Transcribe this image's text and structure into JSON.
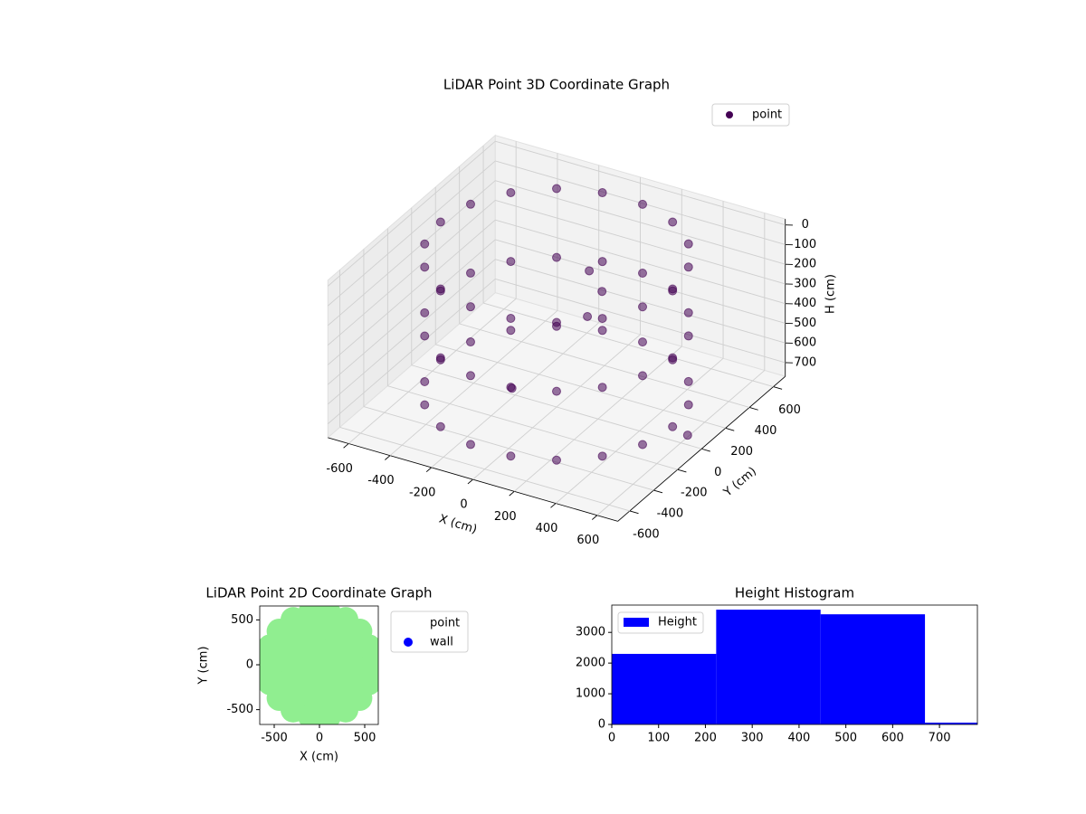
{
  "chart_data": [
    {
      "type": "scatter3d",
      "title": "LiDAR Point 3D Coordinate Graph",
      "xlabel": "X (cm)",
      "ylabel": "Y (cm)",
      "zlabel": "H (cm)",
      "xlim": [
        -700,
        700
      ],
      "ylim": [
        -700,
        700
      ],
      "zlim": [
        -30,
        770
      ],
      "z_inverted": true,
      "xticks": [
        -600,
        -400,
        -200,
        0,
        200,
        400,
        600
      ],
      "yticks": [
        -600,
        -400,
        -200,
        0,
        200,
        400,
        600
      ],
      "zticks": [
        0,
        100,
        200,
        300,
        400,
        500,
        600,
        700
      ],
      "grid": true,
      "legend": "upper right",
      "series": [
        {
          "name": "point",
          "color": "#440154",
          "x": [
            560,
            526,
            429,
            280,
            97,
            -97,
            -280,
            -429,
            -526,
            -560,
            -526,
            -429,
            -280,
            -97,
            97,
            280,
            429,
            526,
            560,
            526,
            429,
            280,
            97,
            -97,
            -280,
            -429,
            -526,
            -560,
            -526,
            -429,
            -280,
            -97,
            97,
            280,
            429,
            526,
            560,
            526,
            429,
            280,
            97,
            -97,
            -280,
            -429,
            -526,
            -560,
            -526,
            -429,
            -280,
            -97,
            97,
            280,
            429,
            526,
            100,
            150,
            120,
            -100,
            650
          ],
          "y": [
            0,
            192,
            360,
            485,
            551,
            551,
            485,
            360,
            192,
            0,
            -192,
            -360,
            -485,
            -551,
            -551,
            -485,
            -360,
            -192,
            0,
            192,
            360,
            485,
            551,
            551,
            485,
            360,
            192,
            0,
            -192,
            -360,
            -485,
            -551,
            -551,
            -485,
            -360,
            -192,
            0,
            192,
            360,
            485,
            551,
            551,
            485,
            360,
            192,
            0,
            -192,
            -360,
            -485,
            -551,
            -551,
            -485,
            -360,
            -192,
            100,
            120,
            50,
            -200,
            -30
          ],
          "h": [
            0,
            0,
            0,
            0,
            0,
            0,
            0,
            0,
            0,
            0,
            0,
            0,
            0,
            0,
            0,
            0,
            0,
            0,
            350,
            350,
            350,
            350,
            350,
            350,
            350,
            350,
            350,
            350,
            350,
            350,
            350,
            350,
            350,
            350,
            350,
            350,
            700,
            700,
            700,
            700,
            700,
            700,
            700,
            700,
            700,
            700,
            700,
            700,
            700,
            700,
            700,
            700,
            700,
            700,
            100,
            200,
            300,
            600,
            700
          ]
        }
      ]
    },
    {
      "type": "scatter",
      "title": "LiDAR Point 2D Coordinate Graph",
      "xlabel": "X (cm)",
      "ylabel": "Y (cm)",
      "xlim": [
        -660,
        650
      ],
      "ylim": [
        -665,
        655
      ],
      "xticks": [
        -500,
        0,
        500
      ],
      "yticks": [
        -500,
        0,
        500
      ],
      "legend": "outside right",
      "series": [
        {
          "name": "point",
          "color": "#90ee90",
          "x": [
            0,
            200,
            100,
            -100,
            -200,
            -100,
            100,
            400,
            346,
            200,
            0,
            -200,
            -346,
            -400,
            -346,
            -200,
            0,
            200,
            346,
            580,
            545,
            444,
            290,
            101,
            -101,
            -290,
            -444,
            -545,
            -580,
            -545,
            -444,
            -290,
            -101,
            101,
            290,
            444,
            545
          ],
          "y": [
            0,
            0,
            173,
            173,
            0,
            -173,
            -173,
            0,
            200,
            346,
            400,
            346,
            200,
            0,
            -200,
            -346,
            -400,
            -346,
            -200,
            0,
            198,
            373,
            502,
            571,
            571,
            502,
            373,
            198,
            0,
            -198,
            -373,
            -502,
            -571,
            -571,
            -502,
            -373,
            -198
          ]
        },
        {
          "name": "wall",
          "color": "#0000ff",
          "x": [],
          "y": []
        }
      ]
    },
    {
      "type": "histogram",
      "title": "Height Histogram",
      "label": "Height",
      "color": "#0000ff",
      "bins": [
        0,
        223,
        446,
        669,
        892
      ],
      "counts": [
        2300,
        3740,
        3590,
        60
      ],
      "xlim": [
        0,
        781
      ],
      "ylim": [
        0,
        3890
      ],
      "xticks": [
        0,
        100,
        200,
        300,
        400,
        500,
        600,
        700
      ],
      "yticks": [
        0,
        1000,
        2000,
        3000
      ],
      "legend": "upper left"
    }
  ]
}
